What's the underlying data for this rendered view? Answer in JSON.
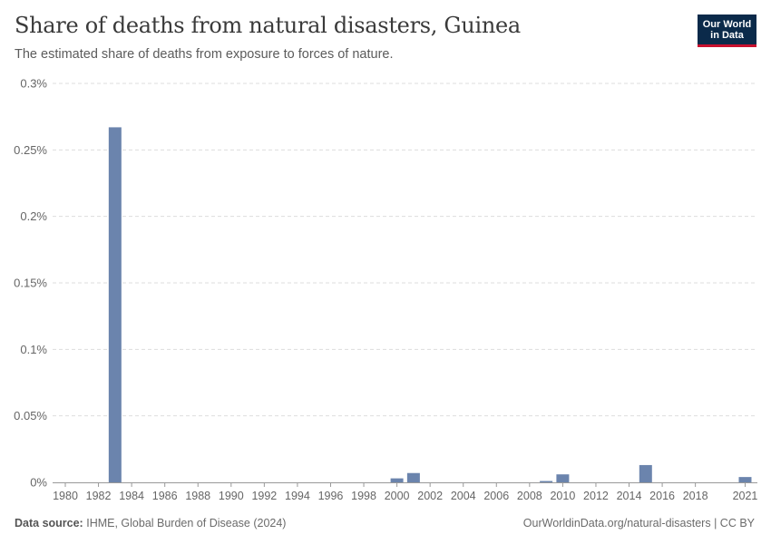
{
  "header": {
    "title": "Share of deaths from natural disasters, Guinea",
    "subtitle": "The estimated share of deaths from exposure to forces of nature.",
    "logo_line1": "Our World",
    "logo_line2": "in Data"
  },
  "footer": {
    "source_label": "Data source:",
    "source_text": "IHME, Global Burden of Disease (2024)",
    "link_text": "OurWorldinData.org/natural-disasters | CC BY"
  },
  "colors": {
    "bar": "#6b84ad",
    "grid": "#dddddd",
    "axis": "#999999"
  },
  "chart_data": {
    "type": "bar",
    "title": "Share of deaths from natural disasters, Guinea",
    "subtitle": "The estimated share of deaths from exposure to forces of nature.",
    "x": [
      1983,
      2000,
      2001,
      2009,
      2010,
      2015,
      2021
    ],
    "values": [
      0.267,
      0.003,
      0.007,
      0.001,
      0.006,
      0.013,
      0.004
    ],
    "unit": "%",
    "ylim": [
      0,
      0.3
    ],
    "xlim": [
      1980,
      2021
    ],
    "y_ticks": [
      "0%",
      "0.05%",
      "0.1%",
      "0.15%",
      "0.2%",
      "0.25%",
      "0.3%"
    ],
    "y_tick_values": [
      0,
      0.05,
      0.1,
      0.15,
      0.2,
      0.25,
      0.3
    ],
    "x_ticks": [
      1980,
      1982,
      1984,
      1986,
      1988,
      1990,
      1992,
      1994,
      1996,
      1998,
      2000,
      2002,
      2004,
      2006,
      2008,
      2010,
      2012,
      2014,
      2016,
      2018,
      2021
    ],
    "grid": true,
    "legend": "none"
  }
}
